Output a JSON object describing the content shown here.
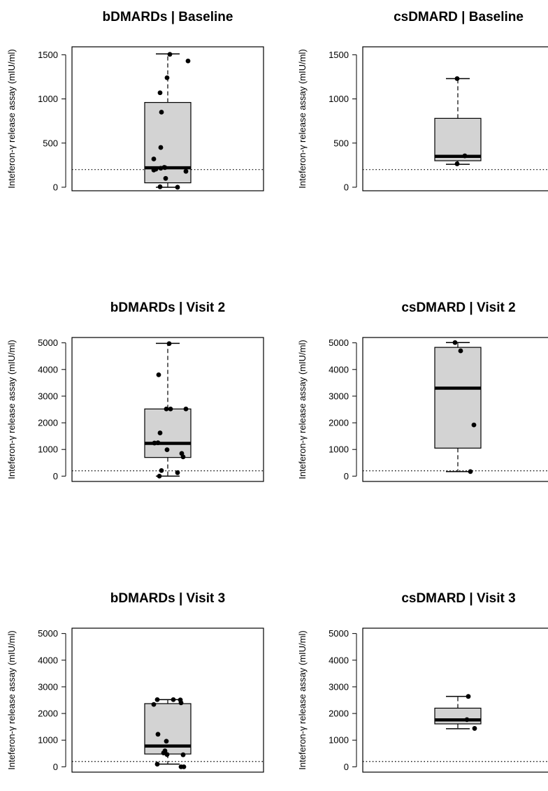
{
  "chart_data": [
    {
      "type": "box",
      "title": "bDMARDs | Baseline",
      "ylabel": "Inteferon-γ release assay (mIU/ml)",
      "ylim": [
        -40,
        1590
      ],
      "yticks": [
        0,
        500,
        1000,
        1500
      ],
      "threshold": 200,
      "box": {
        "whisker_low": 0,
        "q1": 50,
        "median": 220,
        "q3": 960,
        "whisker_high": 1510
      },
      "points": [
        {
          "x": 0.03,
          "y": 1505
        },
        {
          "x": 0.29,
          "y": 1430
        },
        {
          "x": -0.01,
          "y": 1240
        },
        {
          "x": -0.11,
          "y": 1070
        },
        {
          "x": -0.09,
          "y": 850
        },
        {
          "x": -0.1,
          "y": 450
        },
        {
          "x": -0.2,
          "y": 320
        },
        {
          "x": -0.05,
          "y": 225
        },
        {
          "x": -0.04,
          "y": 222
        },
        {
          "x": -0.1,
          "y": 215
        },
        {
          "x": -0.17,
          "y": 205
        },
        {
          "x": -0.2,
          "y": 195
        },
        {
          "x": 0.26,
          "y": 180
        },
        {
          "x": -0.03,
          "y": 100
        },
        {
          "x": -0.11,
          "y": 5
        },
        {
          "x": 0.14,
          "y": 0
        }
      ]
    },
    {
      "type": "box",
      "title": "csDMARD | Baseline",
      "ylabel": "Inteferon-γ release assay (mIU/ml)",
      "ylim": [
        -40,
        1590
      ],
      "yticks": [
        0,
        500,
        1000,
        1500
      ],
      "threshold": 200,
      "box": {
        "whisker_low": 260,
        "q1": 300,
        "median": 350,
        "q3": 780,
        "whisker_high": 1230
      },
      "points": [
        {
          "x": -0.01,
          "y": 1230
        },
        {
          "x": 0.1,
          "y": 355
        },
        {
          "x": -0.01,
          "y": 265
        }
      ]
    },
    {
      "type": "box",
      "title": "bDMARDs | Visit 2",
      "ylabel": "Inteferon-γ release assay (mIU/ml)",
      "ylim": [
        -200,
        5200
      ],
      "yticks": [
        0,
        1000,
        2000,
        3000,
        4000,
        5000
      ],
      "threshold": 200,
      "box": {
        "whisker_low": 0,
        "q1": 700,
        "median": 1230,
        "q3": 2520,
        "whisker_high": 4980
      },
      "points": [
        {
          "x": 0.02,
          "y": 4970
        },
        {
          "x": -0.13,
          "y": 3800
        },
        {
          "x": -0.02,
          "y": 2520
        },
        {
          "x": 0.04,
          "y": 2520
        },
        {
          "x": 0.26,
          "y": 2520
        },
        {
          "x": -0.11,
          "y": 1620
        },
        {
          "x": -0.19,
          "y": 1240
        },
        {
          "x": -0.14,
          "y": 1250
        },
        {
          "x": -0.01,
          "y": 990
        },
        {
          "x": 0.2,
          "y": 850
        },
        {
          "x": 0.22,
          "y": 720
        },
        {
          "x": -0.09,
          "y": 210
        },
        {
          "x": 0.14,
          "y": 130
        },
        {
          "x": -0.12,
          "y": 0
        }
      ]
    },
    {
      "type": "box",
      "title": "csDMARD | Visit 2",
      "ylabel": "Inteferon-γ release assay (mIU/ml)",
      "ylim": [
        -200,
        5200
      ],
      "yticks": [
        0,
        1000,
        2000,
        3000,
        4000,
        5000
      ],
      "threshold": 200,
      "box": {
        "whisker_low": 170,
        "q1": 1050,
        "median": 3300,
        "q3": 4830,
        "whisker_high": 5010
      },
      "points": [
        {
          "x": -0.04,
          "y": 5010
        },
        {
          "x": 0.04,
          "y": 4700
        },
        {
          "x": 0.23,
          "y": 1920
        },
        {
          "x": 0.18,
          "y": 170
        }
      ]
    },
    {
      "type": "box",
      "title": "bDMARDs | Visit 3",
      "ylabel": "Inteferon-γ release assay (mIU/ml)",
      "ylim": [
        -200,
        5200
      ],
      "yticks": [
        0,
        1000,
        2000,
        3000,
        4000,
        5000
      ],
      "threshold": 200,
      "box": {
        "whisker_low": 100,
        "q1": 480,
        "median": 780,
        "q3": 2370,
        "whisker_high": 2520
      },
      "points": [
        {
          "x": -0.15,
          "y": 2520
        },
        {
          "x": 0.08,
          "y": 2520
        },
        {
          "x": 0.18,
          "y": 2510
        },
        {
          "x": 0.19,
          "y": 2400
        },
        {
          "x": -0.2,
          "y": 2340
        },
        {
          "x": -0.14,
          "y": 1220
        },
        {
          "x": -0.02,
          "y": 960
        },
        {
          "x": -0.04,
          "y": 600
        },
        {
          "x": -0.06,
          "y": 520
        },
        {
          "x": -0.01,
          "y": 460
        },
        {
          "x": 0.22,
          "y": 450
        },
        {
          "x": -0.15,
          "y": 100
        },
        {
          "x": 0.19,
          "y": 0
        },
        {
          "x": 0.23,
          "y": 0
        }
      ]
    },
    {
      "type": "box",
      "title": "csDMARD | Visit 3",
      "ylabel": "Inteferon-γ release assay (mIU/ml)",
      "ylim": [
        -200,
        5200
      ],
      "yticks": [
        0,
        1000,
        2000,
        3000,
        4000,
        5000
      ],
      "threshold": 200,
      "box": {
        "whisker_low": 1430,
        "q1": 1610,
        "median": 1760,
        "q3": 2200,
        "whisker_high": 2640
      },
      "points": [
        {
          "x": 0.15,
          "y": 2640
        },
        {
          "x": 0.13,
          "y": 1770
        },
        {
          "x": 0.24,
          "y": 1440
        }
      ]
    }
  ]
}
